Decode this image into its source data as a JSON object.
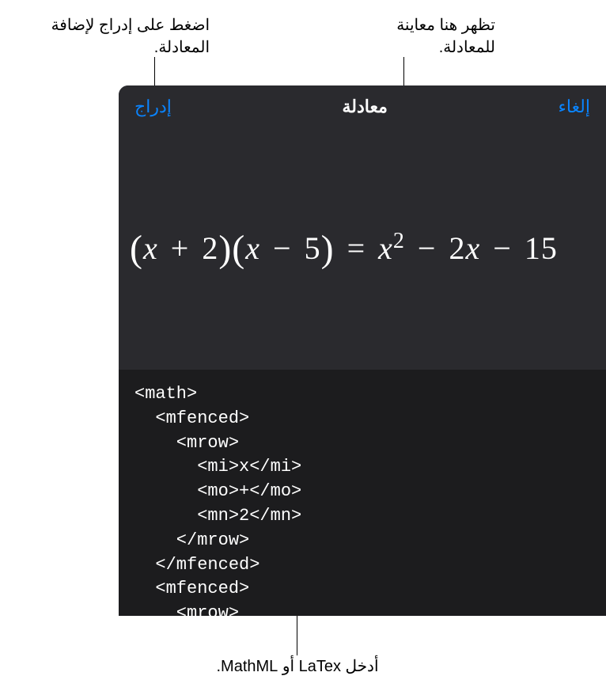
{
  "callouts": {
    "insert": "اضغط على إدراج لإضافة المعادلة.",
    "preview": "تظهر هنا معاينة للمعادلة.",
    "input": "أدخل LaTex أو MathML."
  },
  "header": {
    "insert_label": "إدراج",
    "title": "معادلة",
    "cancel_label": "إلغاء"
  },
  "preview": {
    "equation_html": "<span class=\"paren\">(</span>x <span class=\"op\">+</span> <span class=\"num\">2</span><span class=\"paren\">)</span><span class=\"paren\">(</span>x <span class=\"op\">−</span> <span class=\"num\">5</span><span class=\"paren\">)</span> <span class=\"op\">=</span> x<sup>2</sup> <span class=\"op\">−</span> <span class=\"num\">2</span>x <span class=\"op\">−</span> <span class=\"num\">15</span>"
  },
  "code": {
    "content": "<math>\n  <mfenced>\n    <mrow>\n      <mi>x</mi>\n      <mo>+</mo>\n      <mn>2</mn>\n    </mrow>\n  </mfenced>\n  <mfenced>\n    <mrow>"
  },
  "colors": {
    "background_dark": "#2a2a2e",
    "code_background": "#1c1c1e",
    "accent": "#0a84ff",
    "text_light": "#ffffff",
    "text_dark": "#000000"
  }
}
